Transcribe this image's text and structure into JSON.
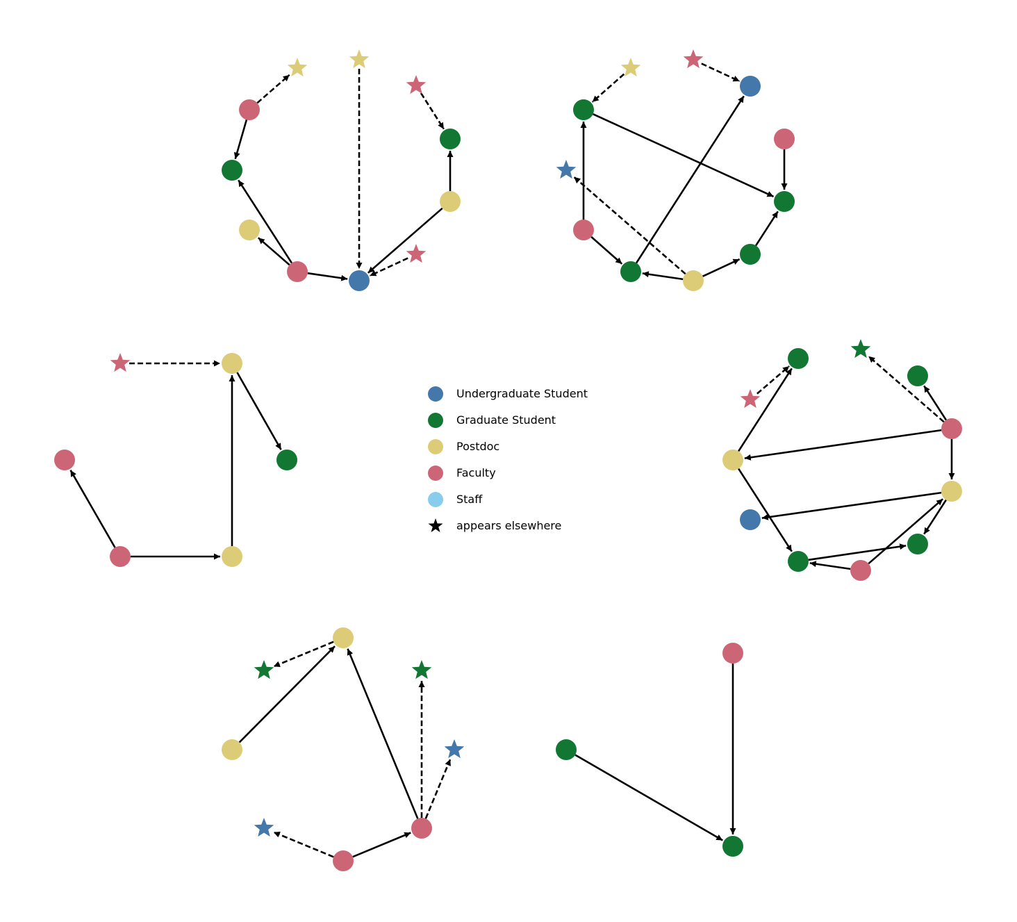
{
  "colors": {
    "undergraduate": "#4477aa",
    "graduate": "#117733",
    "postdoc": "#ddcc77",
    "faculty": "#cc6677",
    "staff": "#88ccee",
    "star": "#000000",
    "edge": "#000000"
  },
  "legend": [
    {
      "label": "Undergraduate Student",
      "role": "undergraduate",
      "shape": "circle"
    },
    {
      "label": "Graduate Student",
      "role": "graduate",
      "shape": "circle"
    },
    {
      "label": "Postdoc",
      "role": "postdoc",
      "shape": "circle"
    },
    {
      "label": "Faculty",
      "role": "faculty",
      "shape": "circle"
    },
    {
      "label": "Staff",
      "role": "staff",
      "shape": "circle"
    },
    {
      "label": "appears elsewhere",
      "role": "star",
      "shape": "star"
    }
  ],
  "graphs": [
    {
      "nodes": [
        {
          "id": "a0",
          "role": "faculty",
          "shape": "circle"
        },
        {
          "id": "a1",
          "role": "graduate",
          "shape": "circle"
        },
        {
          "id": "a2",
          "role": "postdoc",
          "shape": "circle"
        },
        {
          "id": "a3",
          "role": "faculty",
          "shape": "circle"
        },
        {
          "id": "a4",
          "role": "undergraduate",
          "shape": "circle"
        },
        {
          "id": "a5",
          "role": "faculty",
          "shape": "star"
        },
        {
          "id": "a6",
          "role": "postdoc",
          "shape": "circle"
        },
        {
          "id": "a7",
          "role": "graduate",
          "shape": "circle"
        },
        {
          "id": "a8",
          "role": "faculty",
          "shape": "star"
        },
        {
          "id": "a9",
          "role": "postdoc",
          "shape": "star"
        },
        {
          "id": "a10",
          "role": "postdoc",
          "shape": "star"
        }
      ],
      "edges": [
        {
          "from": "a0",
          "to": "a1",
          "style": "solid"
        },
        {
          "from": "a0",
          "to": "a10",
          "style": "dashed"
        },
        {
          "from": "a3",
          "to": "a1",
          "style": "solid"
        },
        {
          "from": "a3",
          "to": "a2",
          "style": "solid"
        },
        {
          "from": "a3",
          "to": "a4",
          "style": "solid"
        },
        {
          "from": "a9",
          "to": "a4",
          "style": "dashed"
        },
        {
          "from": "a5",
          "to": "a4",
          "style": "dashed"
        },
        {
          "from": "a6",
          "to": "a4",
          "style": "solid"
        },
        {
          "from": "a6",
          "to": "a7",
          "style": "solid"
        },
        {
          "from": "a8",
          "to": "a7",
          "style": "dashed"
        }
      ]
    },
    {
      "nodes": [
        {
          "id": "b0",
          "role": "postdoc",
          "shape": "star"
        },
        {
          "id": "b1",
          "role": "faculty",
          "shape": "star"
        },
        {
          "id": "b2",
          "role": "undergraduate",
          "shape": "circle"
        },
        {
          "id": "b3",
          "role": "graduate",
          "shape": "circle"
        },
        {
          "id": "b4",
          "role": "faculty",
          "shape": "circle"
        },
        {
          "id": "b5",
          "role": "undergraduate",
          "shape": "star"
        },
        {
          "id": "b6",
          "role": "graduate",
          "shape": "circle"
        },
        {
          "id": "b7",
          "role": "faculty",
          "shape": "circle"
        },
        {
          "id": "b8",
          "role": "graduate",
          "shape": "circle"
        },
        {
          "id": "b9",
          "role": "graduate",
          "shape": "circle"
        },
        {
          "id": "b10",
          "role": "postdoc",
          "shape": "circle"
        }
      ],
      "edges": [
        {
          "from": "b0",
          "to": "b3",
          "style": "dashed"
        },
        {
          "from": "b1",
          "to": "b2",
          "style": "dashed"
        },
        {
          "from": "b3",
          "to": "b6",
          "style": "solid"
        },
        {
          "from": "b4",
          "to": "b6",
          "style": "solid"
        },
        {
          "from": "b7",
          "to": "b3",
          "style": "solid"
        },
        {
          "from": "b7",
          "to": "b9",
          "style": "solid"
        },
        {
          "from": "b9",
          "to": "b2",
          "style": "solid"
        },
        {
          "from": "b10",
          "to": "b9",
          "style": "solid"
        },
        {
          "from": "b10",
          "to": "b8",
          "style": "solid"
        },
        {
          "from": "b8",
          "to": "b6",
          "style": "solid"
        },
        {
          "from": "b10",
          "to": "b5",
          "style": "dashed"
        }
      ]
    },
    {
      "nodes": [
        {
          "id": "c0",
          "role": "faculty",
          "shape": "star"
        },
        {
          "id": "c1",
          "role": "postdoc",
          "shape": "circle"
        },
        {
          "id": "c2",
          "role": "faculty",
          "shape": "circle"
        },
        {
          "id": "c3",
          "role": "graduate",
          "shape": "circle"
        },
        {
          "id": "c4",
          "role": "faculty",
          "shape": "circle"
        },
        {
          "id": "c5",
          "role": "postdoc",
          "shape": "circle"
        }
      ],
      "edges": [
        {
          "from": "c0",
          "to": "c1",
          "style": "dashed"
        },
        {
          "from": "c1",
          "to": "c3",
          "style": "solid"
        },
        {
          "from": "c5",
          "to": "c1",
          "style": "solid"
        },
        {
          "from": "c4",
          "to": "c5",
          "style": "solid"
        },
        {
          "from": "c4",
          "to": "c2",
          "style": "solid"
        }
      ]
    },
    {
      "nodes": [
        {
          "id": "d0",
          "role": "graduate",
          "shape": "circle"
        },
        {
          "id": "d1",
          "role": "graduate",
          "shape": "star"
        },
        {
          "id": "d2",
          "role": "faculty",
          "shape": "star"
        },
        {
          "id": "d3",
          "role": "graduate",
          "shape": "circle"
        },
        {
          "id": "d4",
          "role": "faculty",
          "shape": "circle"
        },
        {
          "id": "d5",
          "role": "postdoc",
          "shape": "circle"
        },
        {
          "id": "d6",
          "role": "postdoc",
          "shape": "circle"
        },
        {
          "id": "d7",
          "role": "graduate",
          "shape": "circle"
        },
        {
          "id": "d8",
          "role": "undergraduate",
          "shape": "circle"
        },
        {
          "id": "d9",
          "role": "graduate",
          "shape": "circle"
        },
        {
          "id": "d10",
          "role": "faculty",
          "shape": "circle"
        }
      ],
      "edges": [
        {
          "from": "d2",
          "to": "d0",
          "style": "dashed"
        },
        {
          "from": "d5",
          "to": "d0",
          "style": "solid"
        },
        {
          "from": "d4",
          "to": "d1",
          "style": "dashed"
        },
        {
          "from": "d4",
          "to": "d3",
          "style": "solid"
        },
        {
          "from": "d4",
          "to": "d5",
          "style": "solid"
        },
        {
          "from": "d4",
          "to": "d6",
          "style": "solid"
        },
        {
          "from": "d6",
          "to": "d7",
          "style": "solid"
        },
        {
          "from": "d6",
          "to": "d8",
          "style": "solid"
        },
        {
          "from": "d5",
          "to": "d9",
          "style": "solid"
        },
        {
          "from": "d9",
          "to": "d7",
          "style": "solid"
        },
        {
          "from": "d10",
          "to": "d9",
          "style": "solid"
        },
        {
          "from": "d10",
          "to": "d6",
          "style": "solid"
        }
      ]
    },
    {
      "nodes": [
        {
          "id": "e0",
          "role": "postdoc",
          "shape": "circle"
        },
        {
          "id": "e1",
          "role": "graduate",
          "shape": "star"
        },
        {
          "id": "e2",
          "role": "graduate",
          "shape": "star"
        },
        {
          "id": "e3",
          "role": "postdoc",
          "shape": "circle"
        },
        {
          "id": "e4",
          "role": "undergraduate",
          "shape": "star"
        },
        {
          "id": "e5",
          "role": "undergraduate",
          "shape": "star"
        },
        {
          "id": "e6",
          "role": "faculty",
          "shape": "circle"
        },
        {
          "id": "e7",
          "role": "faculty",
          "shape": "circle"
        }
      ],
      "edges": [
        {
          "from": "e0",
          "to": "e1",
          "style": "dashed"
        },
        {
          "from": "e3",
          "to": "e0",
          "style": "solid"
        },
        {
          "from": "e7",
          "to": "e0",
          "style": "solid"
        },
        {
          "from": "e7",
          "to": "e2",
          "style": "dashed"
        },
        {
          "from": "e7",
          "to": "e4",
          "style": "dashed"
        },
        {
          "from": "e6",
          "to": "e7",
          "style": "solid"
        },
        {
          "from": "e6",
          "to": "e5",
          "style": "dashed"
        }
      ]
    },
    {
      "nodes": [
        {
          "id": "f0",
          "role": "faculty",
          "shape": "circle"
        },
        {
          "id": "f1",
          "role": "graduate",
          "shape": "circle"
        },
        {
          "id": "f2",
          "role": "graduate",
          "shape": "circle"
        }
      ],
      "edges": [
        {
          "from": "f0",
          "to": "f2",
          "style": "solid"
        },
        {
          "from": "f1",
          "to": "f2",
          "style": "solid"
        }
      ]
    }
  ]
}
